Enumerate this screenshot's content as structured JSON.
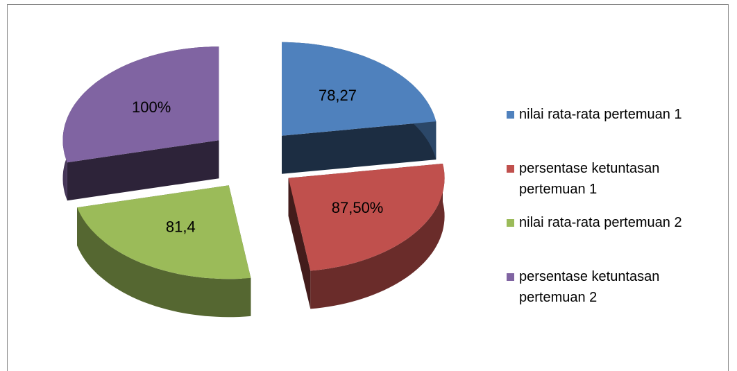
{
  "chart_data": {
    "type": "pie",
    "categories": [
      "nilai rata-rata pertemuan 1",
      "persentase ketuntasan pertemuan 1",
      "nilai rata-rata pertemuan 2",
      "persentase ketuntasan pertemuan 2"
    ],
    "values": [
      78.27,
      87.5,
      81.4,
      100
    ],
    "value_labels": [
      "78,27",
      "87,50%",
      "81,4",
      "100%"
    ],
    "colors": [
      "#4f81bd",
      "#c0504d",
      "#9bbb59",
      "#8064a2"
    ]
  }
}
